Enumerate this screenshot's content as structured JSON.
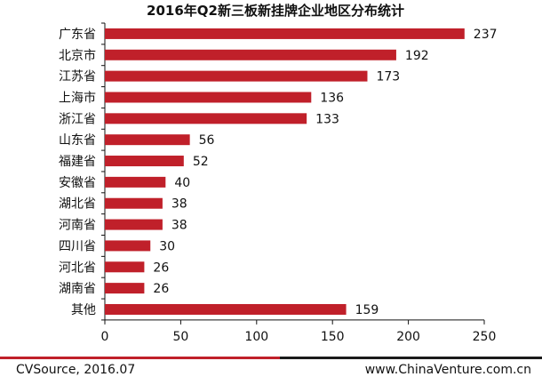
{
  "chart_data": {
    "type": "bar",
    "orientation": "horizontal",
    "title": "2016年Q2新三板新挂牌企业地区分布统计",
    "categories": [
      "广东省",
      "北京市",
      "江苏省",
      "上海市",
      "浙江省",
      "山东省",
      "福建省",
      "安徽省",
      "湖北省",
      "河南省",
      "四川省",
      "河北省",
      "湖南省",
      "其他"
    ],
    "values": [
      237,
      192,
      173,
      136,
      133,
      56,
      52,
      40,
      38,
      38,
      30,
      26,
      26,
      159
    ],
    "xlim": [
      0,
      250
    ],
    "xticks": [
      0,
      50,
      100,
      150,
      200,
      250
    ],
    "bar_color": "#c0202a",
    "grid": false,
    "legend": "none"
  },
  "footer": {
    "source": "CVSource, 2016.07",
    "site": "www.ChinaVenture.com.cn"
  }
}
